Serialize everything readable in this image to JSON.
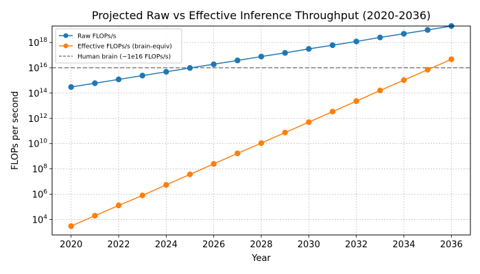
{
  "chart_data": {
    "type": "line",
    "title": "Projected Raw vs Effective Inference Throughput (2020-2036)",
    "xlabel": "Year",
    "ylabel": "FLOPs per second",
    "x": [
      2020,
      2021,
      2022,
      2023,
      2024,
      2025,
      2026,
      2027,
      2028,
      2029,
      2030,
      2031,
      2032,
      2033,
      2034,
      2035,
      2036
    ],
    "series": [
      {
        "name": "Raw FLOPs/s",
        "color": "#1f77b4",
        "marker": "circle",
        "values": [
          300000000000000.0,
          600000000000000.0,
          1200000000000000.0,
          2400000000000000.0,
          4800000000000000.0,
          9600000000000000.0,
          1.9e+16,
          3.8e+16,
          7.7e+16,
          1.5e+17,
          3.1e+17,
          6.1e+17,
          1.2e+18,
          2.5e+18,
          4.9e+18,
          9.8e+18,
          2e+19
        ]
      },
      {
        "name": "Effective FLOPs/s (brain-equiv)",
        "color": "#ff7f0e",
        "marker": "circle",
        "values": [
          3000.0,
          20000.0,
          130000.0,
          800000.0,
          5500000.0,
          37000000.0,
          250000000.0,
          1700000000.0,
          11000000000.0,
          75000000000.0,
          500000000000.0,
          3400000000000.0,
          23000000000000.0,
          160000000000000.0,
          1050000000000000.0,
          7000000000000000.0,
          4.7e+16
        ]
      }
    ],
    "reference_line": {
      "name": "Human brain (~1e16 FLOPs/s)",
      "value": 1e+16,
      "color": "#808080",
      "style": "dashed"
    },
    "x_ticks": [
      2020,
      2022,
      2024,
      2026,
      2028,
      2030,
      2032,
      2034,
      2036
    ],
    "xlim": [
      2019.2,
      2036.8
    ],
    "y_scale": "log",
    "ylim": [
      600,
      2e+19
    ],
    "y_tick_exponents": [
      4,
      6,
      8,
      10,
      12,
      14,
      16,
      18
    ],
    "y_tick_base": "10",
    "grid": true,
    "legend_position": "upper-left"
  }
}
